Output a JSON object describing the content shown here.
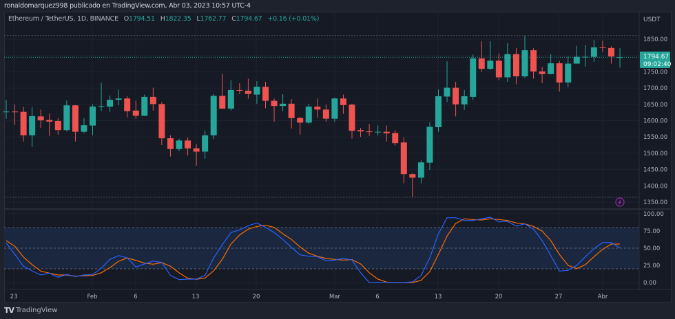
{
  "header": {
    "published_line": "ronaldomarquez998 publicado en TradingView.com, Abr 03, 2023 10:57 UTC-4"
  },
  "legend": {
    "symbol": "Ethereum / TetherUS, 1D, BINANCE",
    "o_label": "O",
    "o_value": "1794.51",
    "h_label": "H",
    "h_value": "1822.35",
    "l_label": "L",
    "l_value": "1762.77",
    "c_label": "C",
    "c_value": "1794.67",
    "change": "+0.16 (+0.01%)"
  },
  "price_axis": {
    "currency": "USDT",
    "ticks": [
      "1850.00",
      "1750.00",
      "1700.00",
      "1650.00",
      "1600.00",
      "1550.00",
      "1500.00",
      "1450.00",
      "1400.00",
      "1350.00"
    ],
    "last_price": "1794.67",
    "countdown": "09:02:40"
  },
  "stoch_axis": {
    "ticks": [
      "100.00",
      "75.00",
      "50.00",
      "25.00",
      "0.00"
    ]
  },
  "time_axis": {
    "ticks": [
      "23",
      "Feb",
      "6",
      "13",
      "20",
      "Mar",
      "6",
      "13",
      "20",
      "27",
      "Abr"
    ]
  },
  "footer": {
    "logo_text": "TradingView"
  },
  "colors": {
    "up": "#26a69a",
    "down": "#ef5350",
    "stoch_k": "#2962ff",
    "stoch_d": "#ff6d00",
    "band": "#1b2a44",
    "last_price_bg": "#26a69a"
  },
  "icons": {
    "alert": "lightning-icon",
    "logo": "tradingview-logo-icon"
  },
  "chart_data": [
    {
      "type": "candlestick",
      "first_date": "Jan 22",
      "last_date": "Abr 03",
      "ylim": [
        1330,
        1880
      ],
      "ohlc": [
        [
          1628,
          1664,
          1606,
          1628
        ],
        [
          1628,
          1650,
          1587,
          1626
        ],
        [
          1627,
          1643,
          1536,
          1555
        ],
        [
          1555,
          1642,
          1519,
          1614
        ],
        [
          1613,
          1634,
          1578,
          1601
        ],
        [
          1602,
          1622,
          1553,
          1597
        ],
        [
          1599,
          1608,
          1557,
          1571
        ],
        [
          1571,
          1662,
          1567,
          1647
        ],
        [
          1647,
          1648,
          1536,
          1566
        ],
        [
          1566,
          1608,
          1561,
          1586
        ],
        [
          1585,
          1650,
          1555,
          1643
        ],
        [
          1643,
          1716,
          1629,
          1645
        ],
        [
          1643,
          1677,
          1627,
          1664
        ],
        [
          1664,
          1696,
          1647,
          1668
        ],
        [
          1668,
          1675,
          1610,
          1629
        ],
        [
          1631,
          1661,
          1606,
          1615
        ],
        [
          1615,
          1680,
          1614,
          1673
        ],
        [
          1673,
          1701,
          1631,
          1651
        ],
        [
          1651,
          1657,
          1525,
          1546
        ],
        [
          1546,
          1555,
          1490,
          1513
        ],
        [
          1513,
          1545,
          1506,
          1539
        ],
        [
          1539,
          1548,
          1493,
          1515
        ],
        [
          1515,
          1527,
          1462,
          1505
        ],
        [
          1505,
          1569,
          1483,
          1555
        ],
        [
          1555,
          1682,
          1543,
          1676
        ],
        [
          1676,
          1745,
          1636,
          1637
        ],
        [
          1637,
          1724,
          1631,
          1694
        ],
        [
          1694,
          1715,
          1682,
          1692
        ],
        [
          1692,
          1729,
          1668,
          1682
        ],
        [
          1680,
          1721,
          1652,
          1704
        ],
        [
          1704,
          1719,
          1638,
          1661
        ],
        [
          1661,
          1668,
          1597,
          1645
        ],
        [
          1645,
          1681,
          1629,
          1652
        ],
        [
          1652,
          1666,
          1576,
          1608
        ],
        [
          1608,
          1612,
          1557,
          1594
        ],
        [
          1594,
          1652,
          1589,
          1643
        ],
        [
          1643,
          1668,
          1609,
          1634
        ],
        [
          1634,
          1649,
          1597,
          1606
        ],
        [
          1606,
          1671,
          1596,
          1668
        ],
        [
          1668,
          1680,
          1621,
          1648
        ],
        [
          1649,
          1652,
          1545,
          1569
        ],
        [
          1571,
          1578,
          1550,
          1567
        ],
        [
          1567,
          1590,
          1553,
          1565
        ],
        [
          1565,
          1585,
          1555,
          1566
        ],
        [
          1566,
          1585,
          1536,
          1561
        ],
        [
          1562,
          1571,
          1524,
          1531
        ],
        [
          1533,
          1548,
          1408,
          1436
        ],
        [
          1436,
          1439,
          1365,
          1425
        ],
        [
          1425,
          1478,
          1408,
          1472
        ],
        [
          1471,
          1595,
          1449,
          1581
        ],
        [
          1580,
          1696,
          1566,
          1675
        ],
        [
          1674,
          1782,
          1657,
          1701
        ],
        [
          1701,
          1719,
          1613,
          1650
        ],
        [
          1650,
          1694,
          1633,
          1675
        ],
        [
          1673,
          1803,
          1663,
          1791
        ],
        [
          1791,
          1844,
          1749,
          1759
        ],
        [
          1759,
          1844,
          1755,
          1784
        ],
        [
          1784,
          1806,
          1724,
          1733
        ],
        [
          1733,
          1838,
          1719,
          1804
        ],
        [
          1804,
          1823,
          1712,
          1736
        ],
        [
          1736,
          1861,
          1731,
          1816
        ],
        [
          1816,
          1822,
          1729,
          1751
        ],
        [
          1751,
          1765,
          1715,
          1743
        ],
        [
          1743,
          1804,
          1742,
          1776
        ],
        [
          1776,
          1783,
          1689,
          1717
        ],
        [
          1717,
          1797,
          1703,
          1775
        ],
        [
          1775,
          1830,
          1775,
          1796
        ],
        [
          1795,
          1832,
          1766,
          1796
        ],
        [
          1796,
          1848,
          1780,
          1825
        ],
        [
          1825,
          1846,
          1810,
          1823
        ],
        [
          1823,
          1828,
          1775,
          1797
        ],
        [
          1794.51,
          1822.35,
          1762.77,
          1794.67
        ]
      ]
    },
    {
      "type": "line",
      "ylim": [
        -8,
        112
      ],
      "bands": [
        20,
        50,
        80
      ],
      "series": [
        {
          "values": [
            57.7,
            41,
            23.7,
            17,
            11,
            13.7,
            7.7,
            11.7,
            8.7,
            11,
            11.7,
            21,
            33.7,
            39.3,
            36,
            22.7,
            27,
            31.3,
            29.3,
            10.3,
            4.3,
            5,
            5,
            10.3,
            36,
            55,
            72.7,
            76.7,
            82.7,
            86.7,
            80.3,
            72.7,
            62.7,
            51,
            40.3,
            38.3,
            37.7,
            31.7,
            32.7,
            35,
            32.7,
            14.3,
            0,
            0.3,
            0.3,
            0,
            0,
            1,
            10.3,
            36,
            71,
            94.3,
            94.3,
            90.3,
            90.3,
            92.7,
            95,
            88.3,
            89,
            82,
            85.3,
            77.7,
            61,
            39.3,
            16.7,
            17.7,
            25,
            37.7,
            49.3,
            58.3,
            58.3,
            50.3
          ]
        },
        {
          "values": [
            61,
            52.7,
            37,
            26,
            16.7,
            13.7,
            11,
            11,
            9.3,
            10,
            10.3,
            14.3,
            21.7,
            31,
            35.7,
            32.3,
            28.3,
            26.7,
            29,
            23.7,
            14.3,
            6.3,
            4.7,
            6.7,
            17,
            34,
            56,
            69.3,
            77.7,
            81.7,
            83.3,
            80.3,
            71,
            62.7,
            51.7,
            42.7,
            38.3,
            35,
            33.7,
            32.7,
            33.3,
            27,
            14.3,
            5,
            0.7,
            0,
            0,
            0,
            3.3,
            16,
            41,
            67.7,
            86,
            92.7,
            91.7,
            91,
            92.7,
            91.7,
            90.3,
            86.7,
            85.3,
            81.7,
            75,
            61,
            41,
            25,
            20.3,
            26,
            37.7,
            48.3,
            56,
            56
          ]
        }
      ]
    }
  ]
}
